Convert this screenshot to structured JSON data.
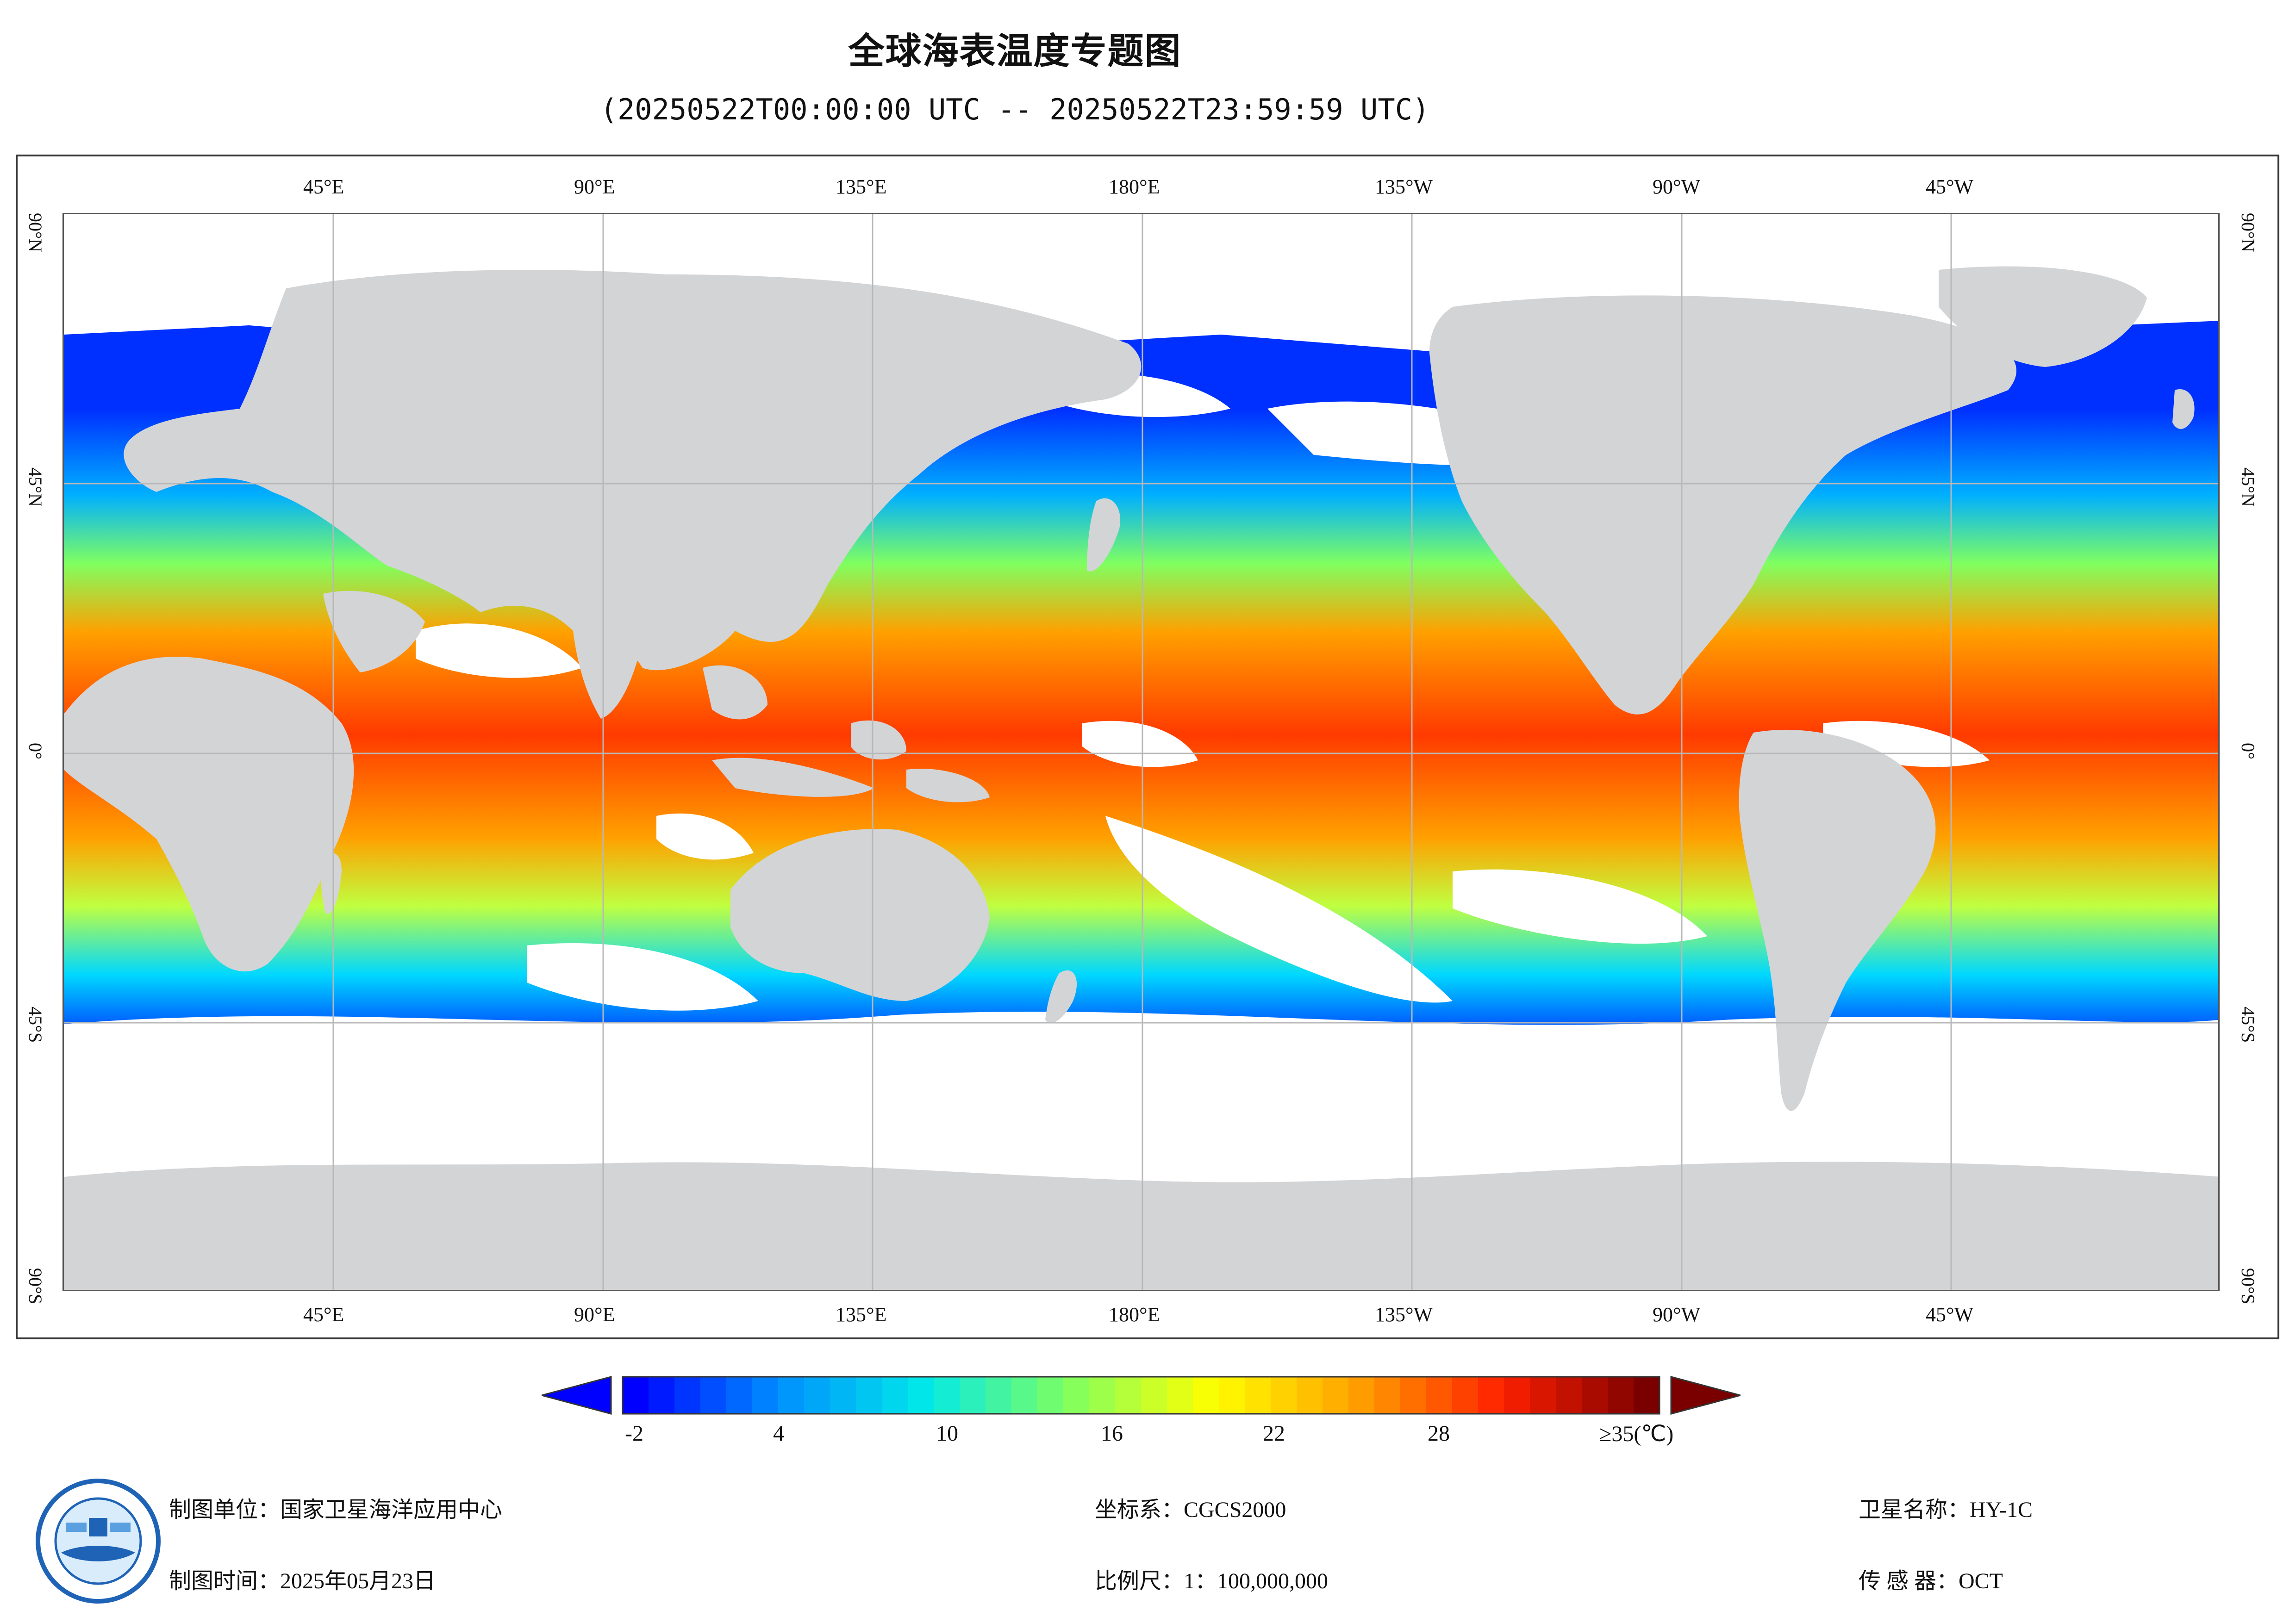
{
  "title": "全球海表温度专题图",
  "subtitle": "(20250522T00:00:00 UTC -- 20250522T23:59:59 UTC)",
  "map": {
    "lon_labels": [
      "45°E",
      "90°E",
      "135°E",
      "180°E",
      "135°W",
      "90°W",
      "45°W"
    ],
    "lat_labels": [
      "90°N",
      "45°N",
      "0°",
      "45°S",
      "90°S"
    ],
    "colors": {
      "land": "#d3d4d6",
      "cloud": "#ffffff",
      "grid": "#b8b8b8"
    }
  },
  "legend": {
    "tick_labels": [
      "-2",
      "4",
      "10",
      "16",
      "22",
      "28",
      "≥35(℃)"
    ],
    "colors": [
      "#0000ff",
      "#0090ff",
      "#00e8e8",
      "#80ff60",
      "#ffff00",
      "#ffa000",
      "#ff2000",
      "#7a0000"
    ]
  },
  "footer": {
    "org": "制图单位：国家卫星海洋应用中心",
    "date": "制图时间：2025年05月23日",
    "coord": "坐标系：CGCS2000",
    "scale": "比例尺：1：100,000,000",
    "satellite": "卫星名称：HY-1C",
    "sensor": "传 感 器：OCT"
  }
}
